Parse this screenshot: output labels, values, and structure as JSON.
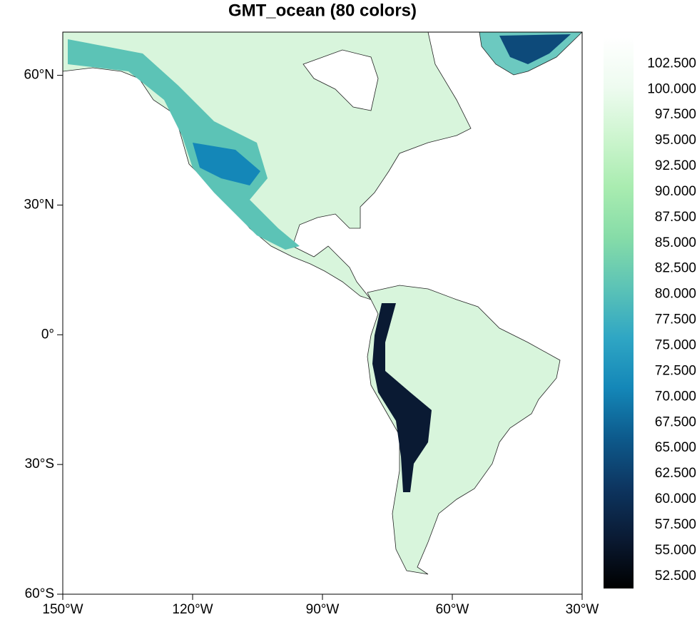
{
  "chart_data": {
    "type": "map",
    "title": "GMT_ocean (80 colors)",
    "xlim": [
      -150,
      -30
    ],
    "ylim": [
      -60,
      70
    ],
    "xticks": [
      {
        "value": -150,
        "label": "150°W"
      },
      {
        "value": -120,
        "label": "120°W"
      },
      {
        "value": -90,
        "label": "90°W"
      },
      {
        "value": -60,
        "label": "60°W"
      },
      {
        "value": -30,
        "label": "30°W"
      }
    ],
    "yticks": [
      {
        "value": -60,
        "label": "60°S"
      },
      {
        "value": -30,
        "label": "30°S"
      },
      {
        "value": 0,
        "label": "0°"
      },
      {
        "value": 30,
        "label": "30°N"
      },
      {
        "value": 60,
        "label": "60°N"
      }
    ],
    "colorbar": {
      "lim": [
        51.3,
        105.1
      ],
      "colors": [
        "#000000",
        "#0a1a33",
        "#0d3560",
        "#0d5a8c",
        "#1487b8",
        "#2fa6c4",
        "#5cc3b6",
        "#86dca8",
        "#a9ecb0",
        "#cdf5cf",
        "#eefbf0",
        "#ffffff"
      ],
      "ticks": [
        {
          "value": 52.5,
          "label": "52.500"
        },
        {
          "value": 55,
          "label": "55.000"
        },
        {
          "value": 57.5,
          "label": "57.500"
        },
        {
          "value": 60,
          "label": "60.000"
        },
        {
          "value": 62.5,
          "label": "62.500"
        },
        {
          "value": 65,
          "label": "65.000"
        },
        {
          "value": 67.5,
          "label": "67.500"
        },
        {
          "value": 70,
          "label": "70.000"
        },
        {
          "value": 72.5,
          "label": "72.500"
        },
        {
          "value": 75,
          "label": "75.000"
        },
        {
          "value": 77.5,
          "label": "77.500"
        },
        {
          "value": 80,
          "label": "80.000"
        },
        {
          "value": 82.5,
          "label": "82.500"
        },
        {
          "value": 85,
          "label": "85.000"
        },
        {
          "value": 87.5,
          "label": "87.500"
        },
        {
          "value": 90,
          "label": "90.000"
        },
        {
          "value": 92.5,
          "label": "92.500"
        },
        {
          "value": 95,
          "label": "95.000"
        },
        {
          "value": 97.5,
          "label": "97.500"
        },
        {
          "value": 100,
          "label": "100.000"
        },
        {
          "value": 102.5,
          "label": "102.500"
        }
      ]
    }
  }
}
